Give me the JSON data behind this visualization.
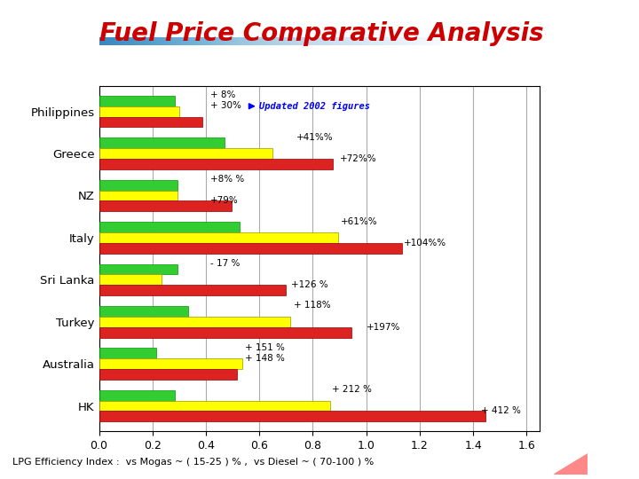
{
  "title": "Fuel Price Comparative Analysis",
  "title_color": "#cc0000",
  "title_fontsize": 20,
  "subtitle_line_color": "#3333cc",
  "countries": [
    "Philippines",
    "Greece",
    "NZ",
    "Italy",
    "Sri Lanka",
    "Turkey",
    "Australia",
    "HK"
  ],
  "lpg": [
    0.285,
    0.468,
    0.295,
    0.525,
    0.295,
    0.335,
    0.215,
    0.285
  ],
  "diesel": [
    0.3,
    0.65,
    0.295,
    0.895,
    0.235,
    0.715,
    0.535,
    0.865
  ],
  "uld": [
    0.385,
    0.875,
    0.495,
    1.135,
    0.7,
    0.945,
    0.515,
    1.445
  ],
  "lpg_color": "#33cc33",
  "diesel_color": "#ffff00",
  "uld_color": "#dd2222",
  "bar_height": 0.25,
  "xlim": [
    0,
    1.65
  ],
  "xticks": [
    0,
    0.2,
    0.4,
    0.6,
    0.8,
    1.0,
    1.2,
    1.4,
    1.6
  ],
  "ann_fontsize": 7.5,
  "footer": "LPG Efficiency Index :  vs Mogas ~ ( 15-25 ) % ,  vs Diesel ~ ( 70-100 ) %",
  "background_color": "#ffffff",
  "grid_color": "#aaaaaa",
  "deco_yellow": "#ffcc00",
  "deco_blue": "#3333cc"
}
